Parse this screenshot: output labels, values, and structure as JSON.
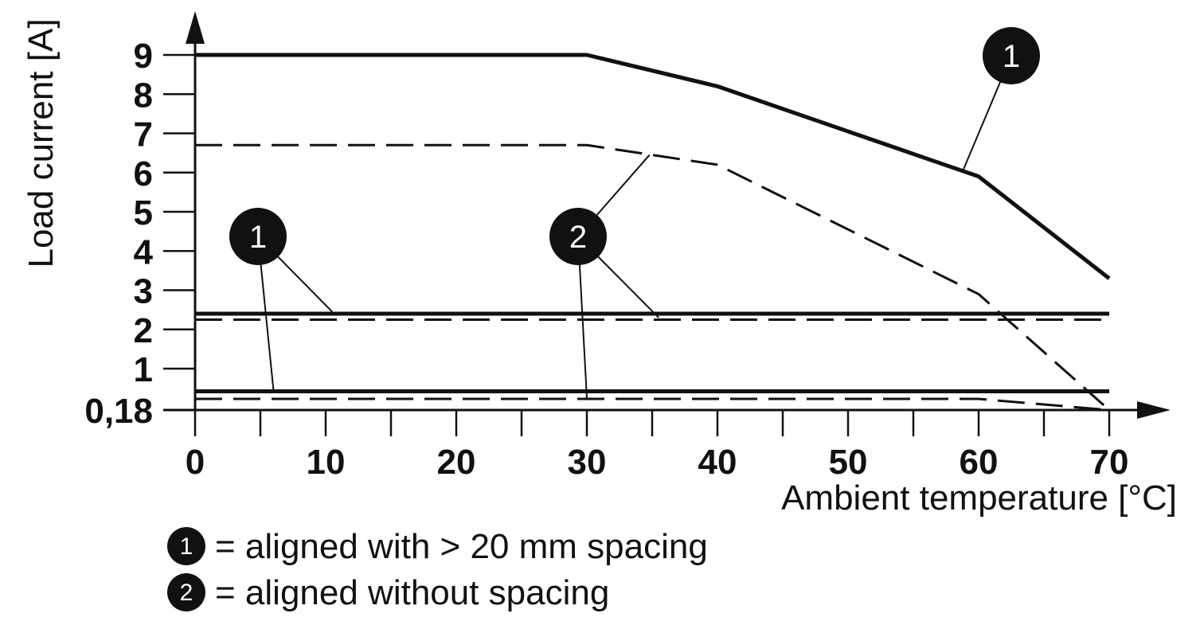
{
  "chart_data": {
    "type": "line",
    "xlabel": "Ambient temperature [°C]",
    "ylabel": "Load current [A]",
    "xlim": [
      0,
      70
    ],
    "x_ticks": [
      "0",
      "10",
      "20",
      "30",
      "40",
      "50",
      "60",
      "70"
    ],
    "y_ticks": [
      "0,18",
      "1",
      "2",
      "3",
      "4",
      "5",
      "6",
      "7",
      "8",
      "9"
    ],
    "grid": false,
    "series": [
      {
        "marker": "1",
        "style": "solid",
        "x": [
          0,
          30,
          40,
          60,
          70
        ],
        "y": [
          9.0,
          9.0,
          8.2,
          5.9,
          3.3
        ]
      },
      {
        "marker": "2",
        "style": "dashed",
        "x": [
          0,
          30,
          40,
          60,
          70
        ],
        "y": [
          6.7,
          6.7,
          6.2,
          2.9,
          0.18
        ]
      },
      {
        "marker": "1",
        "style": "solid",
        "x": [
          0,
          70
        ],
        "y": [
          2.4,
          2.4
        ]
      },
      {
        "marker": "2",
        "style": "dashed",
        "x": [
          0,
          70
        ],
        "y": [
          2.25,
          2.25
        ]
      },
      {
        "marker": "1",
        "style": "solid",
        "x": [
          0,
          70
        ],
        "y": [
          0.55,
          0.55
        ]
      },
      {
        "marker": "2",
        "style": "dashed",
        "x": [
          0,
          60,
          70
        ],
        "y": [
          0.4,
          0.4,
          0.18
        ]
      }
    ],
    "legend": [
      {
        "marker": "1",
        "text": "= aligned with > 20 mm spacing"
      },
      {
        "marker": "2",
        "text": "= aligned without spacing"
      }
    ]
  }
}
